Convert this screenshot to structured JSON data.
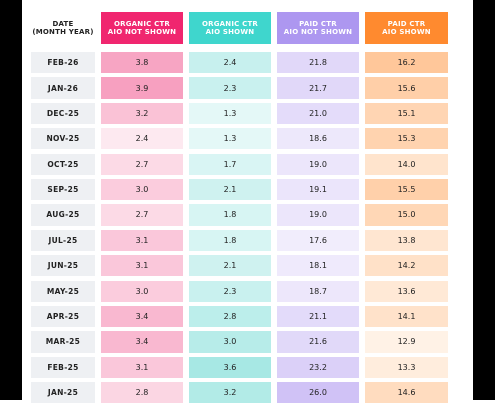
{
  "chart_data": {
    "type": "table",
    "columns": [
      "DATE\n(MONTH YEAR)",
      "ORGANIC CTR\nAIO NOT SHOWN",
      "ORGANIC CTR\nAIO SHOWN",
      "PAID CTR\nAIO NOT SHOWN",
      "PAID CTR\nAIO SHOWN"
    ],
    "header_colors": [
      "#ffffff",
      "#f0266f",
      "#3fd6cd",
      "#ad97f0",
      "#ff8a2f"
    ],
    "heat_scales": [
      {
        "low": "#fde9f0",
        "high": "#f7a0c0"
      },
      {
        "low": "#e4f8f7",
        "high": "#a7e8e4"
      },
      {
        "low": "#f1edfc",
        "high": "#d0c2f6"
      },
      {
        "low": "#fff2e6",
        "high": "#ffc79a"
      }
    ],
    "rows": [
      {
        "date": "FEB-26",
        "values": [
          "3.8",
          "2.4",
          "21.8",
          "16.2"
        ]
      },
      {
        "date": "JAN-26",
        "values": [
          "3.9",
          "2.3",
          "21.7",
          "15.6"
        ]
      },
      {
        "date": "DEC-25",
        "values": [
          "3.2",
          "1.3",
          "21.0",
          "15.1"
        ]
      },
      {
        "date": "NOV-25",
        "values": [
          "2.4",
          "1.3",
          "18.6",
          "15.3"
        ]
      },
      {
        "date": "OCT-25",
        "values": [
          "2.7",
          "1.7",
          "19.0",
          "14.0"
        ]
      },
      {
        "date": "SEP-25",
        "values": [
          "3.0",
          "2.1",
          "19.1",
          "15.5"
        ]
      },
      {
        "date": "AUG-25",
        "values": [
          "2.7",
          "1.8",
          "19.0",
          "15.0"
        ]
      },
      {
        "date": "JUL-25",
        "values": [
          "3.1",
          "1.8",
          "17.6",
          "13.8"
        ]
      },
      {
        "date": "JUN-25",
        "values": [
          "3.1",
          "2.1",
          "18.1",
          "14.2"
        ]
      },
      {
        "date": "MAY-25",
        "values": [
          "3.0",
          "2.3",
          "18.7",
          "13.6"
        ]
      },
      {
        "date": "APR-25",
        "values": [
          "3.4",
          "2.8",
          "21.1",
          "14.1"
        ]
      },
      {
        "date": "MAR-25",
        "values": [
          "3.4",
          "3.0",
          "21.6",
          "12.9"
        ]
      },
      {
        "date": "FEB-25",
        "values": [
          "3.1",
          "3.6",
          "23.2",
          "13.3"
        ]
      },
      {
        "date": "JAN-25",
        "values": [
          "2.8",
          "3.2",
          "26.0",
          "14.6"
        ]
      }
    ]
  }
}
